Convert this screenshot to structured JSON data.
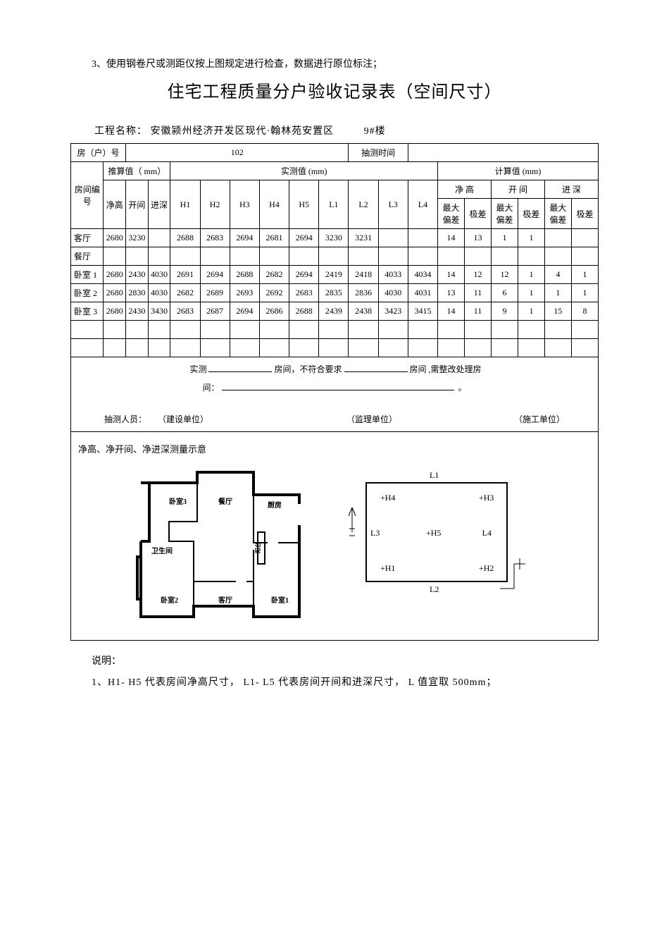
{
  "intro": "3、使用钢卷尺或测距仪按上图规定进行检查，数据进行原位标注；",
  "title": "住宅工程质量分户验收记录表（空间尺寸）",
  "project_label": "工程名称：",
  "project_name": "安徽颍州经济开发区现代·翰林苑安置区",
  "building_no": "9#楼",
  "header": {
    "unit_label": "房（户）号",
    "unit_value": "102",
    "time_label": "抽测时间",
    "time_value": "",
    "room_no": "房间编号",
    "calc_label": "推算值（ mm）",
    "meas_label": "实测值 (mm)",
    "comp_label": "计算值 (mm)",
    "jg": "净高",
    "kj": "开间",
    "js": "进深",
    "h1": "H1",
    "h2": "H2",
    "h3": "H3",
    "h4": "H4",
    "h5": "H5",
    "l1": "L1",
    "l2": "L2",
    "l3": "L3",
    "l4": "L4",
    "netheight": "净 高",
    "bay": "开 间",
    "depth": "进 深",
    "maxdev": "最大偏差",
    "range": "极差",
    "range2": "极差"
  },
  "rows": [
    {
      "name": "客厅",
      "jg": "2680",
      "kj": "3230",
      "js": "",
      "h1": "2688",
      "h2": "2683",
      "h3": "2694",
      "h4": "2681",
      "h5": "2694",
      "l1": "3230",
      "l2": "3231",
      "l3": "",
      "l4": "",
      "a": "14",
      "b": "13",
      "c": "1",
      "d": "1",
      "e": "",
      "f": ""
    },
    {
      "name": "餐厅",
      "jg": "",
      "kj": "",
      "js": "",
      "h1": "",
      "h2": "",
      "h3": "",
      "h4": "",
      "h5": "",
      "l1": "",
      "l2": "",
      "l3": "",
      "l4": "",
      "a": "",
      "b": "",
      "c": "",
      "d": "",
      "e": "",
      "f": ""
    },
    {
      "name": "卧室 1",
      "jg": "2680",
      "kj": "2430",
      "js": "4030",
      "h1": "2691",
      "h2": "2694",
      "h3": "2688",
      "h4": "2682",
      "h5": "2694",
      "l1": "2419",
      "l2": "2418",
      "l3": "4033",
      "l4": "4034",
      "a": "14",
      "b": "12",
      "c": "12",
      "d": "1",
      "e": "4",
      "f": "1"
    },
    {
      "name": "卧室 2",
      "jg": "2680",
      "kj": "2830",
      "js": "4030",
      "h1": "2682",
      "h2": "2689",
      "h3": "2693",
      "h4": "2692",
      "h5": "2683",
      "l1": "2835",
      "l2": "2836",
      "l3": "4030",
      "l4": "4031",
      "a": "13",
      "b": "11",
      "c": "6",
      "d": "1",
      "e": "1",
      "f": "1"
    },
    {
      "name": "卧室 3",
      "jg": "2680",
      "kj": "2430",
      "js": "3430",
      "h1": "2683",
      "h2": "2687",
      "h3": "2694",
      "h4": "2686",
      "h5": "2688",
      "l1": "2439",
      "l2": "2438",
      "l3": "3423",
      "l4": "3415",
      "a": "14",
      "b": "11",
      "c": "9",
      "d": "1",
      "e": "15",
      "f": "8"
    },
    {
      "name": "",
      "jg": "",
      "kj": "",
      "js": "",
      "h1": "",
      "h2": "",
      "h3": "",
      "h4": "",
      "h5": "",
      "l1": "",
      "l2": "",
      "l3": "",
      "l4": "",
      "a": "",
      "b": "",
      "c": "",
      "d": "",
      "e": "",
      "f": ""
    },
    {
      "name": "",
      "jg": "",
      "kj": "",
      "js": "",
      "h1": "",
      "h2": "",
      "h3": "",
      "h4": "",
      "h5": "",
      "l1": "",
      "l2": "",
      "l3": "",
      "l4": "",
      "a": "",
      "b": "",
      "c": "",
      "d": "",
      "e": "",
      "f": ""
    }
  ],
  "notes": {
    "p1a": "实测",
    "p1b": "房间，不符合要求",
    "p1c": "房间 ,需整改处理房",
    "p2a": "间：",
    "p2end": "。",
    "personnel_label": "抽测人员：",
    "u1": "（建设单位）",
    "u2": "（监理单位）",
    "u3": "（施工单位）"
  },
  "diagram": {
    "caption": "净高、净开间、净进深测量示意",
    "rooms": {
      "ws3": "卧室3",
      "ct": "餐厅",
      "cf": "厨房",
      "wsj": "卫生间",
      "ws2": "卧室2",
      "kt": "客厅",
      "ws1": "卧室1",
      "yt": "阳台"
    },
    "labels": {
      "L1": "L1",
      "L2": "L2",
      "L3": "L3",
      "L4": "L4",
      "H1": "+H1",
      "H2": "+H2",
      "H3": "+H3",
      "H4": "+H4",
      "H5": "+H5"
    }
  },
  "explain_heading": "说明：",
  "explain_1": "1、H1- H5  代表房间净高尺寸，   L1- L5  代表房间开间和进深尺寸，   L 值宜取  500mm；"
}
